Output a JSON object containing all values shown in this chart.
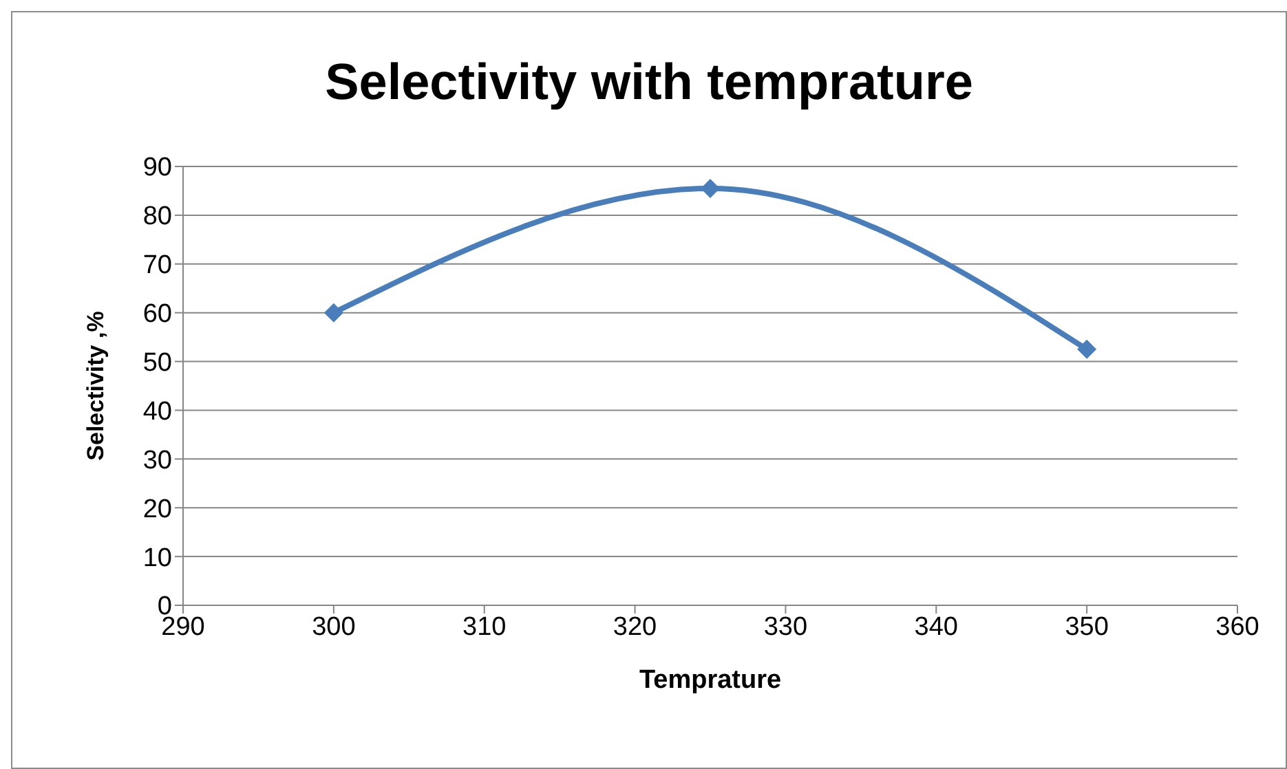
{
  "chart_data": {
    "type": "line",
    "title": "Selectivity with temprature",
    "xlabel": "Temprature",
    "ylabel": "Selectivity ,%",
    "x": [
      300,
      325,
      350
    ],
    "series": [
      {
        "color": "#4a7ebb",
        "values": [
          60,
          85.5,
          52.5
        ]
      }
    ],
    "xlim": [
      290,
      360
    ],
    "xticks": [
      290,
      300,
      310,
      320,
      330,
      340,
      350,
      360
    ],
    "ylim": [
      0,
      90
    ],
    "yticks": [
      0,
      10,
      20,
      30,
      40,
      50,
      60,
      70,
      80,
      90
    ],
    "grid": "y",
    "legend": false,
    "marker": "diamond",
    "line_style": "solid"
  }
}
